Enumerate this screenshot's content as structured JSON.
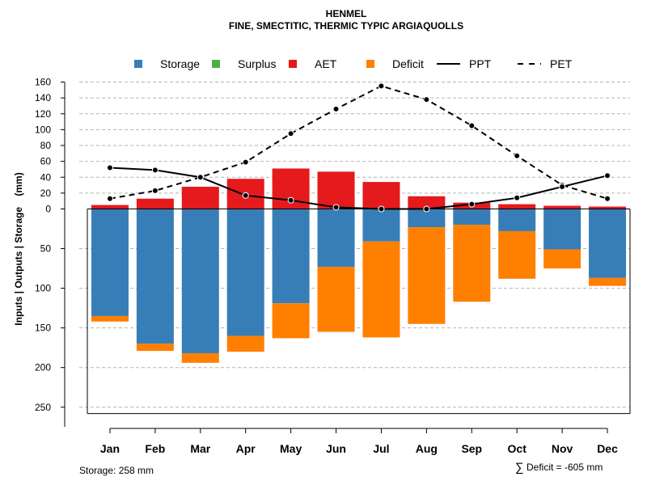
{
  "chart_data": {
    "type": "bar",
    "title": "HENMEL",
    "subtitle": "FINE, SMECTITIC, THERMIC TYPIC ARGIAQUOLLS",
    "ylabel": "Inputs | Outputs | Storage    (mm)",
    "categories": [
      "Jan",
      "Feb",
      "Mar",
      "Apr",
      "May",
      "Jun",
      "Jul",
      "Aug",
      "Sep",
      "Oct",
      "Nov",
      "Dec"
    ],
    "upper_axis": {
      "ylim": [
        0,
        160
      ],
      "ticks": [
        "0",
        "20",
        "40",
        "60",
        "80",
        "100",
        "120",
        "140",
        "160"
      ]
    },
    "lower_axis": {
      "ylim": [
        0,
        258
      ],
      "ticks": [
        "50",
        "100",
        "150",
        "200",
        "250"
      ]
    },
    "series": [
      {
        "name": "Storage",
        "color": "#377EB8",
        "panel": "lower",
        "values": [
          135,
          170,
          182,
          160,
          119,
          73,
          41,
          23,
          20,
          28,
          51,
          87
        ]
      },
      {
        "name": "Surplus",
        "color": "#4DAF4A",
        "panel": "upper",
        "values": [
          0,
          0,
          0,
          0,
          0,
          0,
          0,
          0,
          0,
          0,
          0,
          0
        ]
      },
      {
        "name": "AET",
        "color": "#E41A1C",
        "panel": "upper",
        "values": [
          5,
          13,
          28,
          38,
          51,
          47,
          34,
          16,
          8,
          6,
          4,
          3
        ]
      },
      {
        "name": "Deficit",
        "color": "#FF7F00",
        "panel": "lower",
        "values": [
          7,
          9,
          12,
          20,
          44,
          82,
          121,
          122,
          97,
          60,
          24,
          10
        ]
      },
      {
        "name": "PPT",
        "color": "#000000",
        "style": "solid",
        "panel": "upper",
        "values": [
          52,
          49,
          40,
          17,
          11,
          2,
          0,
          0,
          6,
          14,
          28,
          42
        ]
      },
      {
        "name": "PET",
        "color": "#000000",
        "style": "dashed",
        "panel": "upper",
        "values": [
          13,
          23,
          40,
          59,
          95,
          126,
          155,
          138,
          105,
          67,
          30,
          13
        ]
      }
    ],
    "legend_position": "top",
    "grid": true,
    "footer": {
      "storage_label": "Storage: 258 mm",
      "deficit_label": "Deficit = -605 mm",
      "sum_symbol": "∑"
    }
  }
}
